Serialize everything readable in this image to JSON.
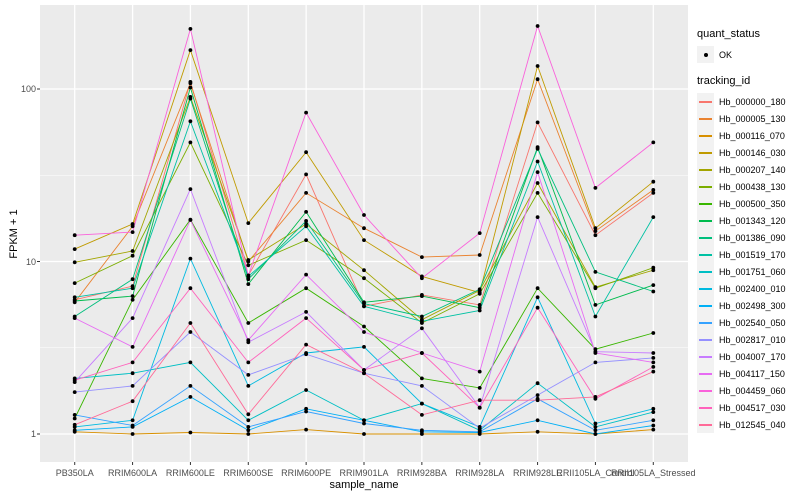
{
  "chart": {
    "ylabel": "FPKM + 1",
    "xlabel": "sample_name"
  },
  "legend": {
    "quant_status_title": "quant_status",
    "quant_status_ok_label": "OK",
    "tracking_id_title": "tracking_id"
  },
  "colors": {
    "panel_background": "#EBEBEB",
    "gridline": "#FFFFFF",
    "point": "#000000",
    "tick_text": "#4D4D4D",
    "legend_key_background": "#F2F2F2"
  },
  "chart_data": {
    "type": "line",
    "title": "",
    "xlabel": "sample_name",
    "ylabel": "FPKM + 1",
    "x_scale": "categorical",
    "y_scale": "log10",
    "grid": true,
    "legend_position": "right",
    "quant_status": "OK",
    "point_color": "#000000",
    "y_ticks": [
      1,
      10,
      100
    ],
    "y_tick_labels": [
      "1",
      "10",
      "100"
    ],
    "y_minor_ticks": [
      3.1623,
      31.623
    ],
    "ylim_approx": [
      0.95,
      290
    ],
    "categories": [
      "PB350LA",
      "RRIM600LA",
      "RRIM600LE",
      "RRIM600SE",
      "RRIM600PE",
      "RRIM901LA",
      "RRIM928BA",
      "RRIM928LA",
      "RRIM928LE",
      "RRII105LA_Control",
      "RRII105LA_Stressed"
    ],
    "series": [
      {
        "name": "Hb_000000_180",
        "color": "#F8766D",
        "values": [
          6.0,
          7.2,
          110,
          8.3,
          32,
          5.5,
          6.4,
          5.6,
          64,
          14.2,
          25
        ]
      },
      {
        "name": "Hb_000005_130",
        "color": "#EA8331",
        "values": [
          5.8,
          16.0,
          108,
          10.0,
          25,
          15.6,
          10.6,
          10.9,
          114,
          15.0,
          26
        ]
      },
      {
        "name": "Hb_000116_070",
        "color": "#D89000",
        "values": [
          1.03,
          1.0,
          1.02,
          1.0,
          1.06,
          1.0,
          1.0,
          1.0,
          1.03,
          1.0,
          1.06
        ]
      },
      {
        "name": "Hb_000146_030",
        "color": "#C09B00",
        "values": [
          11.8,
          16.5,
          168,
          16.7,
          43,
          13.3,
          8.2,
          6.6,
          136,
          15.6,
          29
        ]
      },
      {
        "name": "Hb_000207_140",
        "color": "#A3A500",
        "values": [
          9.9,
          11.5,
          90,
          10.2,
          16.5,
          8.9,
          4.6,
          6.8,
          28.5,
          7.1,
          8.9
        ]
      },
      {
        "name": "Hb_000438_130",
        "color": "#7CAE00",
        "values": [
          7.5,
          10.8,
          49,
          9.5,
          13.3,
          8.0,
          4.4,
          6.5,
          25,
          7.0,
          9.2
        ]
      },
      {
        "name": "Hb_000500_350",
        "color": "#39B600",
        "values": [
          1.23,
          6.0,
          17.5,
          4.4,
          7.0,
          4.2,
          2.1,
          1.85,
          7.0,
          3.1,
          3.85
        ]
      },
      {
        "name": "Hb_001343_120",
        "color": "#00BB4E",
        "values": [
          5.9,
          6.3,
          102,
          7.4,
          19.4,
          5.8,
          6.3,
          5.4,
          46,
          5.6,
          7.3
        ]
      },
      {
        "name": "Hb_001386_090",
        "color": "#00BF7D",
        "values": [
          4.8,
          7.9,
          88,
          7.9,
          17.2,
          5.7,
          4.8,
          6.9,
          45,
          8.7,
          6.7
        ]
      },
      {
        "name": "Hb_001519_170",
        "color": "#00C1A3",
        "values": [
          6.2,
          7.0,
          65,
          8.2,
          16.0,
          5.5,
          4.5,
          5.2,
          38,
          4.8,
          18.1
        ]
      },
      {
        "name": "Hb_001751_060",
        "color": "#00BFC4",
        "values": [
          2.1,
          2.25,
          2.6,
          1.2,
          1.8,
          1.2,
          1.5,
          1.05,
          1.97,
          1.1,
          1.34
        ]
      },
      {
        "name": "Hb_002400_010",
        "color": "#00BAE0",
        "values": [
          1.1,
          1.2,
          10.4,
          1.9,
          2.95,
          3.2,
          1.5,
          1.1,
          6.2,
          1.15,
          1.4
        ]
      },
      {
        "name": "Hb_002498_300",
        "color": "#00B0F6",
        "values": [
          1.05,
          1.1,
          1.64,
          1.05,
          1.4,
          1.2,
          1.03,
          1.02,
          1.2,
          1.0,
          1.12
        ]
      },
      {
        "name": "Hb_002540_050",
        "color": "#35A2FF",
        "values": [
          1.29,
          1.12,
          1.9,
          1.1,
          1.35,
          1.15,
          1.05,
          1.03,
          1.6,
          1.05,
          1.2
        ]
      },
      {
        "name": "Hb_002817_010",
        "color": "#9590FF",
        "values": [
          1.75,
          1.9,
          3.9,
          2.2,
          2.9,
          2.25,
          1.9,
          1.08,
          1.68,
          2.6,
          2.76
        ]
      },
      {
        "name": "Hb_004007_170",
        "color": "#C77CFF",
        "values": [
          2.0,
          4.7,
          26.3,
          3.4,
          5.1,
          2.35,
          4.1,
          1.42,
          18.1,
          3.0,
          2.95
        ]
      },
      {
        "name": "Hb_004117_150",
        "color": "#E76BF3",
        "values": [
          4.7,
          3.2,
          17.4,
          3.5,
          8.4,
          3.9,
          2.95,
          2.3,
          33,
          2.95,
          2.6
        ]
      },
      {
        "name": "Hb_004459_060",
        "color": "#FA62DB",
        "values": [
          14.2,
          14.8,
          223,
          8.3,
          73,
          18.6,
          8.0,
          14.6,
          232,
          26.7,
          49
        ]
      },
      {
        "name": "Hb_004517_030",
        "color": "#FF62BC",
        "values": [
          2.05,
          2.6,
          7.0,
          2.6,
          4.7,
          2.35,
          2.95,
          1.42,
          5.4,
          1.6,
          2.45
        ]
      },
      {
        "name": "Hb_012545_040",
        "color": "#FF6A98",
        "values": [
          1.13,
          1.55,
          4.4,
          1.3,
          3.3,
          2.25,
          1.29,
          1.57,
          1.57,
          1.64,
          2.3
        ]
      }
    ]
  }
}
